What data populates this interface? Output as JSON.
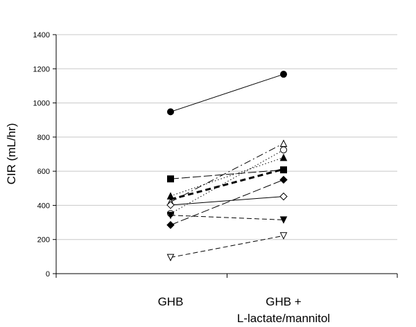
{
  "chart_data": {
    "type": "line",
    "ylabel": "CIR (mL/hr)",
    "xlabel": "",
    "categories": [
      "GHB",
      "GHB +\nL-lactate/mannitol"
    ],
    "ylim": [
      0,
      1400
    ],
    "yticks": [
      0,
      200,
      400,
      600,
      800,
      1000,
      1200,
      1400
    ],
    "grid": "horizontal",
    "series": [
      {
        "marker": "circle-filled",
        "dash": "solid",
        "values": [
          948,
          1168
        ]
      },
      {
        "marker": "triangle-open",
        "dash": "dashdot",
        "values": [
          420,
          763
        ]
      },
      {
        "marker": "circle-open",
        "dash": "dotted",
        "values": [
          352,
          725
        ]
      },
      {
        "marker": "triangle-filled",
        "dash": "dotted",
        "values": [
          455,
          680
        ]
      },
      {
        "marker": "square-filled",
        "dash": "longdash",
        "values": [
          555,
          608
        ]
      },
      {
        "marker": "none",
        "dash": "bold-dash",
        "values": [
          435,
          612
        ]
      },
      {
        "marker": "diamond-filled",
        "dash": "longdash",
        "values": [
          285,
          550
        ]
      },
      {
        "marker": "diamond-open",
        "dash": "solid",
        "values": [
          402,
          452
        ]
      },
      {
        "marker": "triangle-down-filled",
        "dash": "dashed",
        "values": [
          342,
          315
        ]
      },
      {
        "marker": "triangle-down-open",
        "dash": "dashed",
        "values": [
          95,
          222
        ]
      }
    ]
  }
}
